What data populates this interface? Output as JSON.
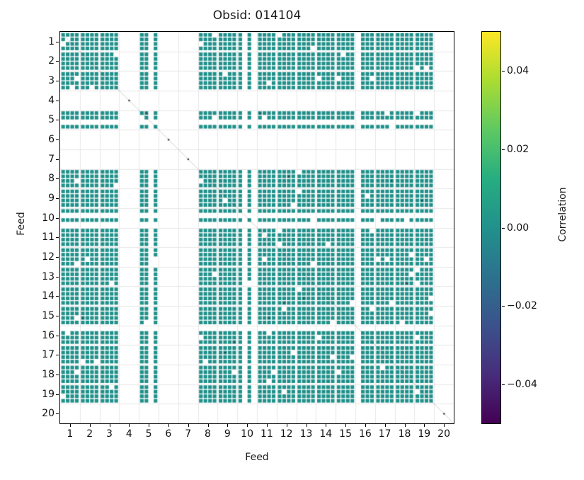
{
  "chart_data": {
    "type": "heatmap",
    "title": "Obsid: 014104",
    "xlabel": "Feed",
    "ylabel": "Feed",
    "x_ticks": [
      "1",
      "2",
      "3",
      "4",
      "5",
      "6",
      "7",
      "8",
      "9",
      "10",
      "11",
      "12",
      "13",
      "14",
      "15",
      "16",
      "17",
      "18",
      "19",
      "20"
    ],
    "y_ticks": [
      "1",
      "2",
      "3",
      "4",
      "5",
      "6",
      "7",
      "8",
      "9",
      "10",
      "11",
      "12",
      "13",
      "14",
      "15",
      "16",
      "17",
      "18",
      "19",
      "20"
    ],
    "n_feeds": 20,
    "bands_per_feed": 4,
    "present_feeds": [
      1,
      2,
      3,
      5,
      8,
      9,
      10,
      11,
      12,
      13,
      14,
      15,
      16,
      17,
      18,
      19
    ],
    "missing_feeds": [
      4,
      6,
      7,
      20
    ],
    "missing_bands": [
      [
        5,
        2
      ],
      [
        10,
        1
      ],
      [
        10,
        3
      ],
      [
        16,
        0
      ]
    ],
    "cell_value_approx": 0.0,
    "cell_color": "#20908a",
    "background_color": "#ffffff",
    "grid_color": "#e8e8e8",
    "diagonal_line_color": "rgba(70,70,70,0.35)",
    "sprinkle_missing_fraction": 0.03,
    "dark_speck_fraction": 0.004,
    "seed": 42,
    "colorbar": {
      "label": "Correlation",
      "vmin": -0.05,
      "vmax": 0.05,
      "colormap": "viridis",
      "ticks": [
        {
          "label": "0.04",
          "value": 0.04
        },
        {
          "label": "0.02",
          "value": 0.02
        },
        {
          "label": "0.00",
          "value": 0.0
        },
        {
          "label": "−0.02",
          "value": -0.02
        },
        {
          "label": "−0.04",
          "value": -0.04
        }
      ],
      "gradient_colors_bottom_to_top": [
        "#440154",
        "#472d7b",
        "#3b528b",
        "#2c728e",
        "#21918c",
        "#27ad81",
        "#5ec962",
        "#aadc32",
        "#fde725"
      ]
    }
  }
}
